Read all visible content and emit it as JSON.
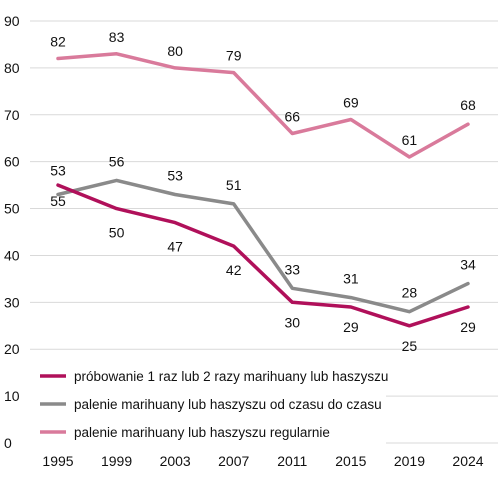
{
  "chart_data": {
    "type": "line",
    "categories": [
      "1995",
      "1999",
      "2003",
      "2007",
      "2011",
      "2015",
      "2019",
      "2024"
    ],
    "ylim": [
      0,
      90
    ],
    "yticks": [
      0,
      10,
      20,
      30,
      40,
      50,
      60,
      70,
      80,
      90
    ],
    "grid": "horizontal",
    "legend_position": "bottom-left",
    "series": [
      {
        "name": "próbowanie 1 raz lub 2 razy marihuany lub haszyszu",
        "color": "#b0105a",
        "values": [
          55,
          50,
          47,
          42,
          30,
          29,
          25,
          29
        ],
        "labels": [
          "55",
          "50",
          "47",
          "42",
          "30",
          "29",
          "25",
          "29"
        ]
      },
      {
        "name": "palenie marihuany lub haszyszu od czasu do czasu",
        "color": "#8a8a8a",
        "values": [
          53,
          56,
          53,
          51,
          33,
          31,
          28,
          34
        ],
        "labels": [
          "53",
          "56",
          "53",
          "51",
          "33",
          "31",
          "28",
          "34"
        ]
      },
      {
        "name": "palenie marihuany lub haszyszu regularnie",
        "color": "#d97a9b",
        "values": [
          82,
          83,
          80,
          79,
          66,
          69,
          61,
          68
        ],
        "labels": [
          "82",
          "83",
          "80",
          "79",
          "66",
          "69",
          "61",
          "68"
        ]
      }
    ]
  }
}
